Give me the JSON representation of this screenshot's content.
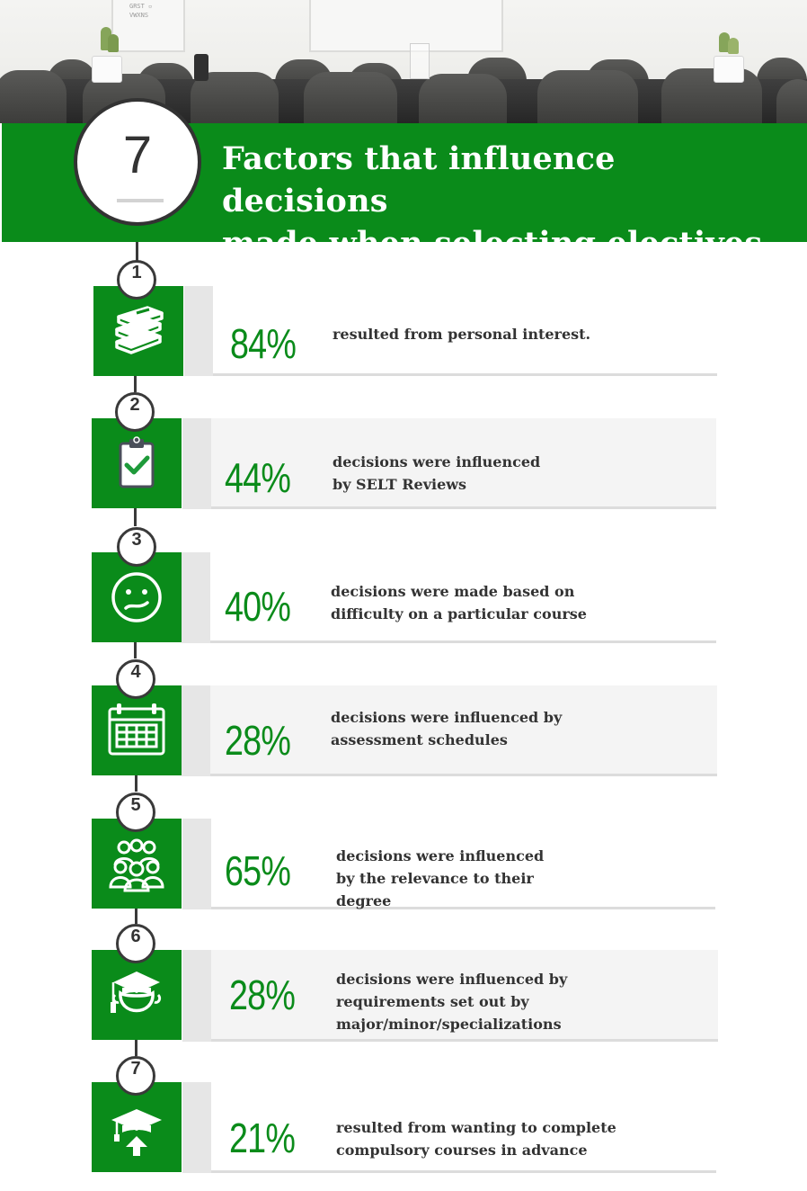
{
  "header": {
    "number": "7",
    "title_line1": "Factors that influence decisions",
    "title_line2": "made when selecting electives"
  },
  "factors": [
    {
      "index": "1",
      "percent": "84%",
      "line1": "resulted from personal interest.",
      "line2": "",
      "line3": "",
      "icon": "books-icon"
    },
    {
      "index": "2",
      "percent": "44%",
      "line1": "decisions were influenced",
      "line2": "by SELT Reviews",
      "line3": "",
      "icon": "clipboard-check-icon"
    },
    {
      "index": "3",
      "percent": "40%",
      "line1": "decisions were made based on",
      "line2": "difficulty on a particular course",
      "line3": "",
      "icon": "uneasy-face-icon"
    },
    {
      "index": "4",
      "percent": "28%",
      "line1": "decisions were influenced by",
      "line2": "assessment schedules",
      "line3": "",
      "icon": "calendar-icon"
    },
    {
      "index": "5",
      "percent": "65%",
      "line1": "decisions were influenced",
      "line2": "by the relevance to their",
      "line3": "degree",
      "icon": "group-icon"
    },
    {
      "index": "6",
      "percent": "28%",
      "line1": "decisions were influenced by",
      "line2": "requirements set out by",
      "line3": "major/minor/specializations",
      "icon": "graduate-icon"
    },
    {
      "index": "7",
      "percent": "21%",
      "line1": "resulted from wanting to complete",
      "line2": "compulsory courses in advance",
      "line3": "",
      "icon": "graduation-cap-arrow-icon"
    }
  ],
  "colors": {
    "accent": "#0a8b1a",
    "dark": "#333333",
    "card": "#f4f4f4"
  }
}
